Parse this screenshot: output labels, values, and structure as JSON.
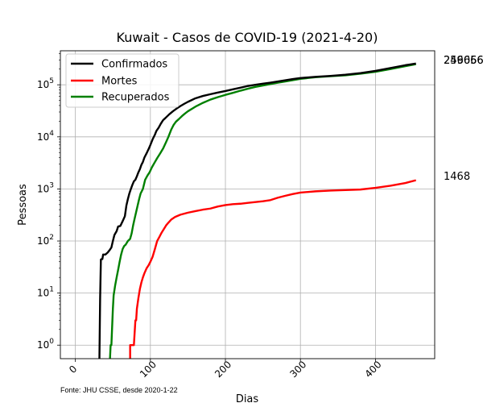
{
  "chart_data": {
    "type": "line",
    "title": "Kuwait - Casos de COVID-19 (2021-4-20)",
    "xlabel": "Dias",
    "ylabel": "Pessoas",
    "yscale": "log",
    "xlim": [
      -20,
      479
    ],
    "ylim": [
      0.55,
      450000
    ],
    "xticks": [
      0,
      100,
      200,
      300,
      400
    ],
    "xtick_labels": [
      "0",
      "100",
      "200",
      "300",
      "400"
    ],
    "yticks": [
      1,
      10,
      100,
      1000,
      10000,
      100000
    ],
    "ytick_labels": [
      "10^0",
      "10^1",
      "10^2",
      "10^3",
      "10^4",
      "10^5"
    ],
    "grid": true,
    "legend_position": "upper left",
    "footnote": "Fonte: JHU CSSE, desde 2020-1-22",
    "series": [
      {
        "name": "Confirmados",
        "color": "#000000",
        "end_label": "256066",
        "points": [
          [
            32,
            0.5
          ],
          [
            33,
            8
          ],
          [
            34,
            44
          ],
          [
            35,
            45
          ],
          [
            36,
            45
          ],
          [
            37,
            55
          ],
          [
            40,
            55
          ],
          [
            43,
            60
          ],
          [
            46,
            68
          ],
          [
            48,
            75
          ],
          [
            50,
            100
          ],
          [
            52,
            130
          ],
          [
            55,
            155
          ],
          [
            57,
            190
          ],
          [
            60,
            195
          ],
          [
            63,
            240
          ],
          [
            66,
            300
          ],
          [
            68,
            480
          ],
          [
            70,
            640
          ],
          [
            72,
            820
          ],
          [
            74,
            1000
          ],
          [
            76,
            1200
          ],
          [
            78,
            1400
          ],
          [
            80,
            1500
          ],
          [
            82,
            1750
          ],
          [
            84,
            2080
          ],
          [
            86,
            2400
          ],
          [
            88,
            2900
          ],
          [
            90,
            3300
          ],
          [
            92,
            4000
          ],
          [
            95,
            4850
          ],
          [
            98,
            6000
          ],
          [
            100,
            7000
          ],
          [
            103,
            9000
          ],
          [
            106,
            11000
          ],
          [
            108,
            13000
          ],
          [
            111,
            15000
          ],
          [
            114,
            18000
          ],
          [
            117,
            21000
          ],
          [
            120,
            23000
          ],
          [
            125,
            27000
          ],
          [
            130,
            31000
          ],
          [
            135,
            35000
          ],
          [
            140,
            39000
          ],
          [
            145,
            43000
          ],
          [
            150,
            47000
          ],
          [
            160,
            55000
          ],
          [
            170,
            61000
          ],
          [
            180,
            66000
          ],
          [
            190,
            71000
          ],
          [
            200,
            76000
          ],
          [
            210,
            82000
          ],
          [
            220,
            88000
          ],
          [
            230,
            95000
          ],
          [
            240,
            100000
          ],
          [
            250,
            105000
          ],
          [
            260,
            110000
          ],
          [
            270,
            116000
          ],
          [
            280,
            122000
          ],
          [
            290,
            129000
          ],
          [
            300,
            135000
          ],
          [
            320,
            142000
          ],
          [
            340,
            148000
          ],
          [
            360,
            156000
          ],
          [
            380,
            168000
          ],
          [
            400,
            185000
          ],
          [
            420,
            210000
          ],
          [
            440,
            238000
          ],
          [
            454,
            256066
          ]
        ]
      },
      {
        "name": "Mortes",
        "color": "#ff0000",
        "end_label": "1468",
        "points": [
          [
            73,
            0.5
          ],
          [
            73,
            1
          ],
          [
            74,
            1
          ],
          [
            76,
            1
          ],
          [
            78,
            1
          ],
          [
            80,
            3
          ],
          [
            81,
            3
          ],
          [
            82,
            5
          ],
          [
            84,
            8
          ],
          [
            86,
            12
          ],
          [
            88,
            16
          ],
          [
            90,
            20
          ],
          [
            92,
            24
          ],
          [
            95,
            30
          ],
          [
            98,
            35
          ],
          [
            100,
            40
          ],
          [
            103,
            50
          ],
          [
            106,
            70
          ],
          [
            109,
            100
          ],
          [
            112,
            120
          ],
          [
            115,
            145
          ],
          [
            118,
            170
          ],
          [
            121,
            200
          ],
          [
            124,
            225
          ],
          [
            128,
            260
          ],
          [
            133,
            290
          ],
          [
            140,
            320
          ],
          [
            150,
            350
          ],
          [
            160,
            375
          ],
          [
            170,
            400
          ],
          [
            180,
            420
          ],
          [
            190,
            460
          ],
          [
            200,
            490
          ],
          [
            210,
            510
          ],
          [
            220,
            520
          ],
          [
            230,
            540
          ],
          [
            240,
            560
          ],
          [
            250,
            580
          ],
          [
            260,
            610
          ],
          [
            270,
            680
          ],
          [
            280,
            740
          ],
          [
            290,
            800
          ],
          [
            300,
            850
          ],
          [
            320,
            900
          ],
          [
            340,
            930
          ],
          [
            360,
            950
          ],
          [
            380,
            975
          ],
          [
            400,
            1050
          ],
          [
            420,
            1150
          ],
          [
            440,
            1300
          ],
          [
            454,
            1468
          ]
        ]
      },
      {
        "name": "Recuperados",
        "color": "#008000",
        "end_label": "249656",
        "points": [
          [
            46,
            0.5
          ],
          [
            47,
            1
          ],
          [
            48,
            1
          ],
          [
            50,
            5
          ],
          [
            51,
            9
          ],
          [
            53,
            14
          ],
          [
            55,
            20
          ],
          [
            57,
            28
          ],
          [
            59,
            40
          ],
          [
            61,
            55
          ],
          [
            63,
            70
          ],
          [
            65,
            80
          ],
          [
            67,
            85
          ],
          [
            70,
            100
          ],
          [
            73,
            110
          ],
          [
            75,
            140
          ],
          [
            77,
            200
          ],
          [
            79,
            270
          ],
          [
            81,
            360
          ],
          [
            83,
            480
          ],
          [
            85,
            640
          ],
          [
            87,
            820
          ],
          [
            90,
            1000
          ],
          [
            93,
            1500
          ],
          [
            96,
            1800
          ],
          [
            99,
            2100
          ],
          [
            102,
            2600
          ],
          [
            105,
            3100
          ],
          [
            109,
            3900
          ],
          [
            113,
            4800
          ],
          [
            117,
            6000
          ],
          [
            121,
            8000
          ],
          [
            124,
            10000
          ],
          [
            128,
            14000
          ],
          [
            131,
            17000
          ],
          [
            134,
            19500
          ],
          [
            138,
            22000
          ],
          [
            142,
            25000
          ],
          [
            146,
            28000
          ],
          [
            150,
            31000
          ],
          [
            160,
            38000
          ],
          [
            170,
            45000
          ],
          [
            180,
            52000
          ],
          [
            190,
            58000
          ],
          [
            200,
            64000
          ],
          [
            210,
            70000
          ],
          [
            220,
            77000
          ],
          [
            230,
            84000
          ],
          [
            240,
            91000
          ],
          [
            250,
            97000
          ],
          [
            260,
            103000
          ],
          [
            270,
            110000
          ],
          [
            280,
            116000
          ],
          [
            290,
            123000
          ],
          [
            300,
            130000
          ],
          [
            320,
            140000
          ],
          [
            340,
            146000
          ],
          [
            360,
            152000
          ],
          [
            380,
            163000
          ],
          [
            400,
            178000
          ],
          [
            420,
            200000
          ],
          [
            440,
            228000
          ],
          [
            454,
            249656
          ]
        ]
      }
    ]
  }
}
